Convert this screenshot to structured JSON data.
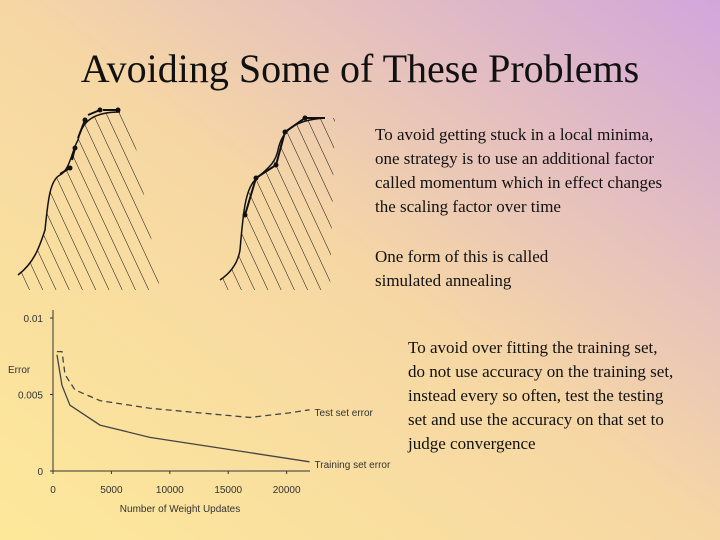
{
  "title": "Avoiding Some of These Problems",
  "paragraphs": [
    [
      "To avoid getting stuck in a local minima,",
      "one strategy is to use an additional factor",
      "called momentum which in effect changes",
      "the scaling factor over time"
    ],
    [
      "One form of this is called",
      "simulated annealing"
    ],
    [
      "To avoid over fitting the training set,",
      "do not use accuracy on the training set,",
      "instead every so often, test the testing",
      "set and use the accuracy on that set to",
      "judge convergence"
    ]
  ],
  "chart_data": {
    "type": "line",
    "ylabel": "Error",
    "xlabel": "Number of Weight Updates",
    "xlim": [
      0,
      22000
    ],
    "ylim": [
      0,
      0.01
    ],
    "xticks": [
      0,
      5000,
      10000,
      15000,
      20000
    ],
    "yticks": [
      0,
      0.005,
      0.01
    ],
    "series": [
      {
        "name": "Test set error",
        "color": "#444444",
        "dashed": true,
        "x": [
          340,
          770,
          1030,
          1880,
          4020,
          8290,
          12560,
          16840,
          20250,
          21960
        ],
        "values": [
          0.0078,
          0.0078,
          0.0063,
          0.0053,
          0.0046,
          0.0041,
          0.0038,
          0.0035,
          0.0038,
          0.004
        ]
      },
      {
        "name": "Training set error",
        "color": "#444444",
        "dashed": false,
        "x": [
          340,
          770,
          1450,
          4020,
          8290,
          12560,
          16840,
          21960
        ],
        "values": [
          0.0076,
          0.0056,
          0.0043,
          0.003,
          0.0022,
          0.0017,
          0.0012,
          0.0006
        ]
      }
    ]
  }
}
